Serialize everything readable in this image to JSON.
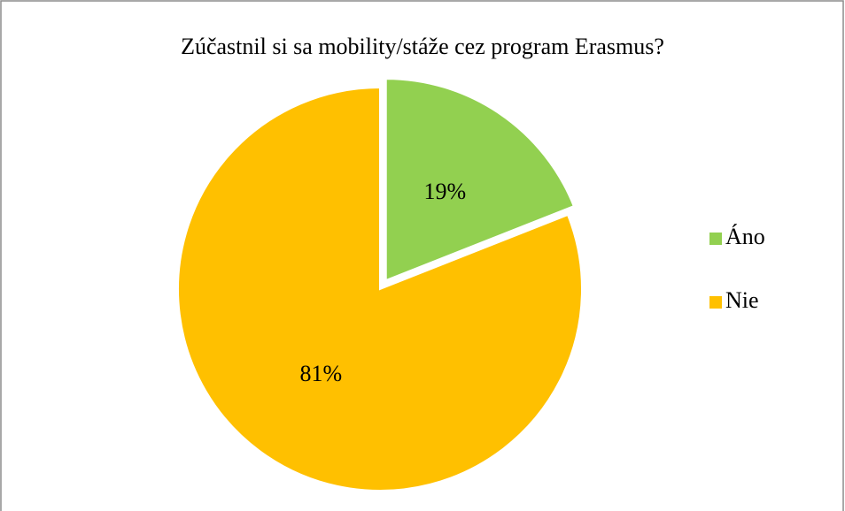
{
  "chart_data": {
    "type": "pie",
    "title": "Zúčastnil si sa mobility/stáže cez program Erasmus?",
    "categories": [
      "Áno",
      "Nie"
    ],
    "values": [
      19,
      81
    ],
    "value_labels": [
      "19%",
      "81%"
    ],
    "colors": [
      "#92d050",
      "#ffc000"
    ],
    "exploded": [
      true,
      false
    ],
    "legend": "right"
  }
}
